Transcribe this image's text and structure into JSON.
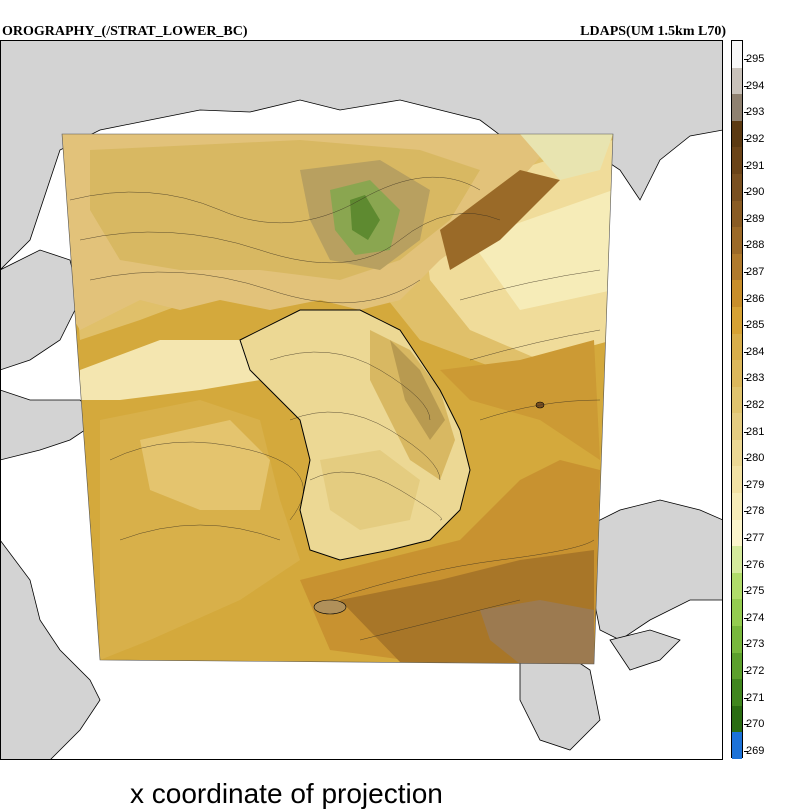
{
  "figure": {
    "title_left": "OROGRAPHY_(/STRAT_LOWER_BC)",
    "title_right": "LDAPS(UM 1.5km L70)",
    "x_axis_label": "x coordinate of projection"
  },
  "map": {
    "land_color": "#d3d3d3",
    "sea_color": "#ffffff",
    "coastline_color": "#000000"
  },
  "colorbar": {
    "labels": [
      "295",
      "294",
      "293",
      "292",
      "291",
      "290",
      "289",
      "288",
      "287",
      "286",
      "285",
      "284",
      "283",
      "282",
      "281",
      "280",
      "279",
      "278",
      "277",
      "276",
      "275",
      "274",
      "273",
      "272",
      "271",
      "270",
      "269"
    ],
    "colors": [
      "#f7f7f7",
      "#c9c2ba",
      "#8f8170",
      "#5c3a12",
      "#6b4418",
      "#7a5020",
      "#8a5c24",
      "#9c6a28",
      "#b07a2c",
      "#c88e2a",
      "#d6a234",
      "#d8ae4a",
      "#dcb85c",
      "#e0c46e",
      "#e4cc80",
      "#ecd894",
      "#f2e2a4",
      "#f6ecb8",
      "#fbf5cc",
      "#d4ea9c",
      "#b0dc6a",
      "#94cc50",
      "#78b83c",
      "#5ca02c",
      "#40861e",
      "#2a6c12",
      "#1c72d8"
    ]
  }
}
